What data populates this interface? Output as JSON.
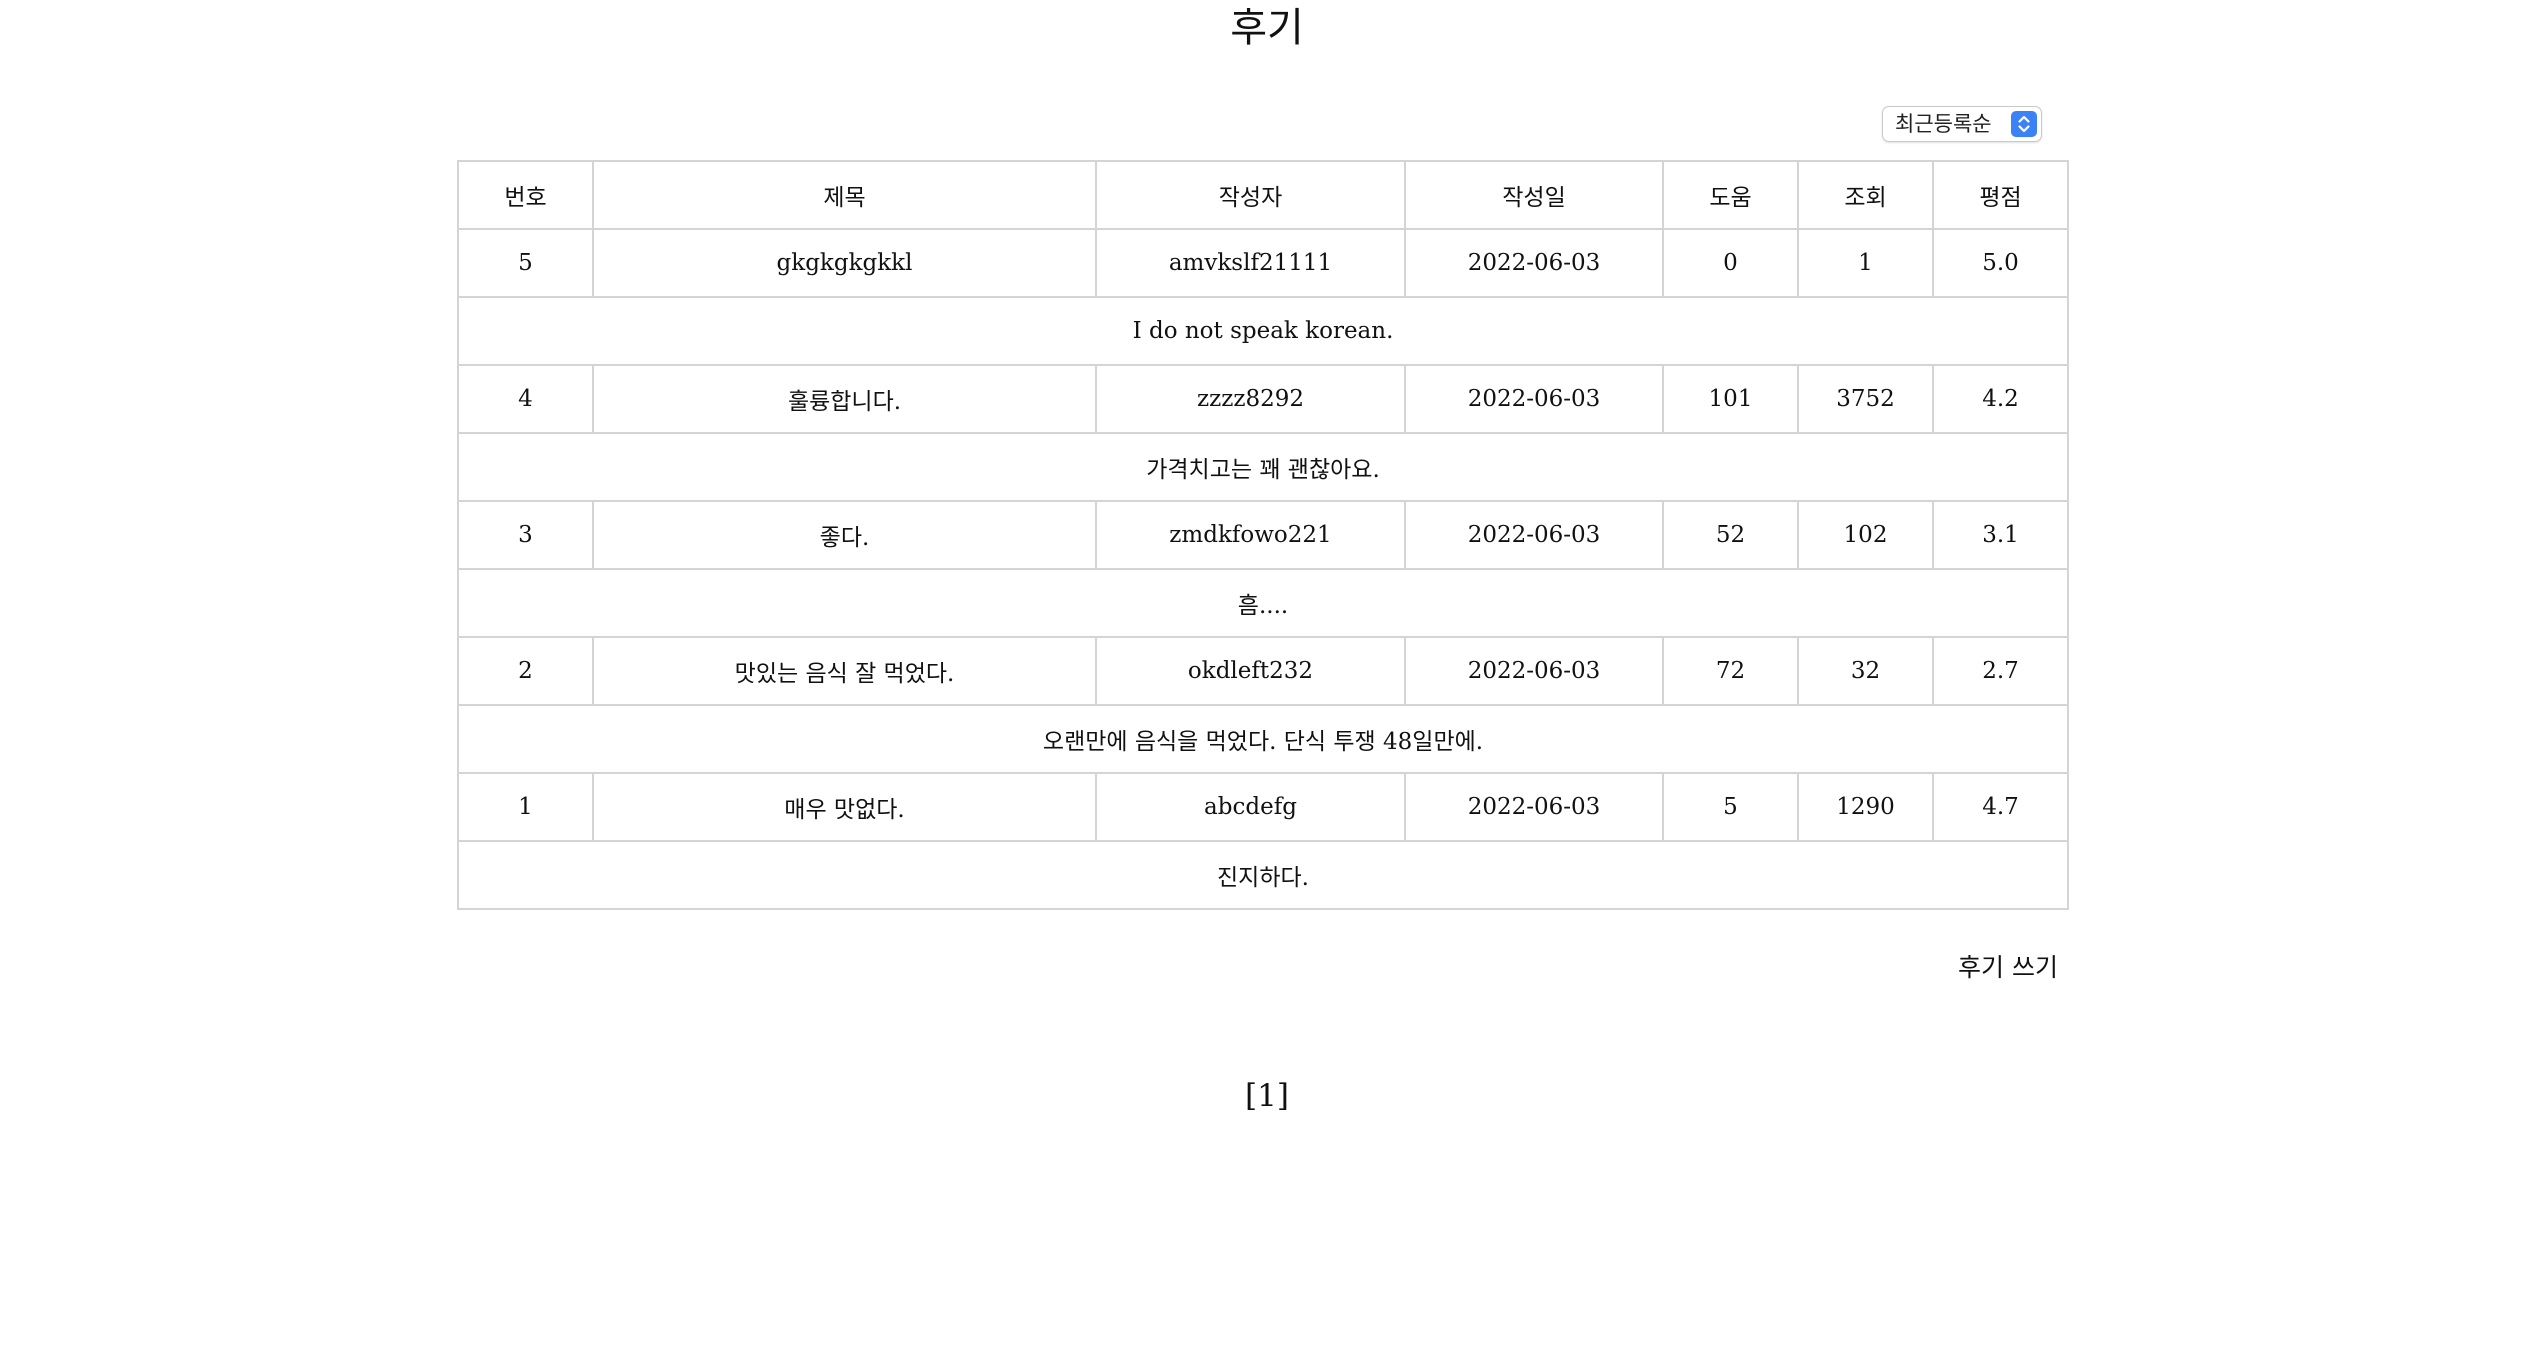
{
  "page": {
    "title": "후기",
    "sort": {
      "selected": "최근등록순"
    },
    "write_link": "후기 쓰기",
    "pagination": "[1]"
  },
  "table": {
    "headers": [
      "번호",
      "제목",
      "작성자",
      "작성일",
      "도움",
      "조회",
      "평점"
    ],
    "rows": [
      {
        "no": "5",
        "title": "gkgkgkgkkl",
        "author": "amvkslf21111",
        "date": "2022-06-03",
        "help": "0",
        "views": "1",
        "rating": "5.0",
        "content": "I do not speak korean."
      },
      {
        "no": "4",
        "title": "훌륭합니다.",
        "author": "zzzz8292",
        "date": "2022-06-03",
        "help": "101",
        "views": "3752",
        "rating": "4.2",
        "content": "가격치고는 꽤 괜찮아요."
      },
      {
        "no": "3",
        "title": "좋다.",
        "author": "zmdkfowo221",
        "date": "2022-06-03",
        "help": "52",
        "views": "102",
        "rating": "3.1",
        "content": "흠...."
      },
      {
        "no": "2",
        "title": "맛있는 음식 잘 먹었다.",
        "author": "okdleft232",
        "date": "2022-06-03",
        "help": "72",
        "views": "32",
        "rating": "2.7",
        "content": "오랜만에 음식을 먹었다. 단식 투쟁 48일만에."
      },
      {
        "no": "1",
        "title": "매우 맛없다.",
        "author": "abcdefg",
        "date": "2022-06-03",
        "help": "5",
        "views": "1290",
        "rating": "4.7",
        "content": "진지하다."
      }
    ]
  },
  "icons": {
    "sort_arrows": "updown-chevron-icon"
  },
  "colors": {
    "select_accent": "#3b82f6",
    "border": "#d4d4d4"
  }
}
